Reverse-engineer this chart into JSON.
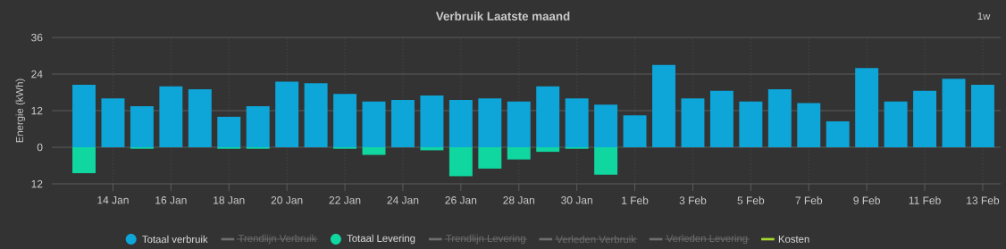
{
  "chart_data": {
    "type": "bar",
    "title": "Verbruik Laatste maand",
    "ylabel": "Energie (kWh)",
    "annotations": [
      "1w"
    ],
    "categories": [
      null,
      "14 Jan",
      null,
      "16 Jan",
      null,
      "18 Jan",
      null,
      "20 Jan",
      null,
      "22 Jan",
      null,
      "24 Jan",
      null,
      "26 Jan",
      null,
      "28 Jan",
      null,
      "30 Jan",
      null,
      "1 Feb",
      null,
      "3 Feb",
      null,
      "5 Feb",
      null,
      "7 Feb",
      null,
      "9 Feb",
      null,
      "11 Feb",
      null,
      "13 Feb"
    ],
    "ylim": [
      -12,
      36
    ],
    "yticks": [
      {
        "value": -12,
        "label": "12"
      },
      0,
      12,
      24,
      36
    ],
    "grid": true,
    "legend": "bottom",
    "series": [
      {
        "name": "Totaal verbruik",
        "color": "#0ea5d8",
        "values": [
          20.5,
          16,
          13.5,
          20,
          19,
          10,
          13.5,
          21.5,
          21,
          17.5,
          15,
          15.5,
          17,
          15.5,
          16,
          15,
          20,
          16,
          14,
          10.5,
          27,
          16,
          18.5,
          15,
          19,
          14.5,
          8.5,
          26,
          15,
          18.5,
          22.5,
          20.5
        ]
      },
      {
        "name": "Trendlijn Verbruik",
        "type": "line",
        "values": [
          null,
          null,
          null,
          null,
          null,
          null,
          null,
          null,
          null,
          null,
          null,
          null,
          null,
          null,
          null,
          null,
          null,
          null,
          null,
          null,
          null,
          null,
          null,
          null,
          null,
          null,
          null,
          null,
          null,
          null,
          null,
          null
        ]
      },
      {
        "name": "Totaal Levering",
        "color": "#10d6a0",
        "values": [
          -8.5,
          0,
          -0.5,
          0,
          0,
          -0.5,
          -0.5,
          0,
          0,
          -0.5,
          -2.5,
          0,
          -1,
          -9.5,
          -7,
          -4,
          -1.5,
          -0.5,
          -9,
          0,
          0,
          0,
          0,
          0,
          0,
          0,
          0,
          0,
          0,
          0,
          0,
          0
        ]
      },
      {
        "name": "Trendlijn Levering",
        "type": "line",
        "values": [
          null,
          null,
          null,
          null,
          null,
          null,
          null,
          null,
          null,
          null,
          null,
          null,
          null,
          null,
          null,
          null,
          null,
          null,
          null,
          null,
          null,
          null,
          null,
          null,
          null,
          null,
          null,
          null,
          null,
          null,
          null,
          null
        ]
      },
      {
        "name": "Verleden Verbruik",
        "type": "line",
        "values": [
          null,
          null,
          null,
          null,
          null,
          null,
          null,
          null,
          null,
          null,
          null,
          null,
          null,
          null,
          null,
          null,
          null,
          null,
          null,
          null,
          null,
          null,
          null,
          null,
          null,
          null,
          null,
          null,
          null,
          null,
          null,
          null
        ]
      },
      {
        "name": "Verleden Levering",
        "type": "line",
        "values": [
          null,
          null,
          null,
          null,
          null,
          null,
          null,
          null,
          null,
          null,
          null,
          null,
          null,
          null,
          null,
          null,
          null,
          null,
          null,
          null,
          null,
          null,
          null,
          null,
          null,
          null,
          null,
          null,
          null,
          null,
          null,
          null
        ]
      },
      {
        "name": "Kosten",
        "type": "line",
        "color": "#a6d930",
        "values": [
          null,
          null,
          null,
          null,
          null,
          null,
          null,
          null,
          null,
          null,
          null,
          null,
          null,
          null,
          null,
          null,
          null,
          null,
          null,
          null,
          null,
          null,
          null,
          null,
          null,
          null,
          null,
          null,
          null,
          null,
          null,
          null
        ]
      }
    ]
  }
}
